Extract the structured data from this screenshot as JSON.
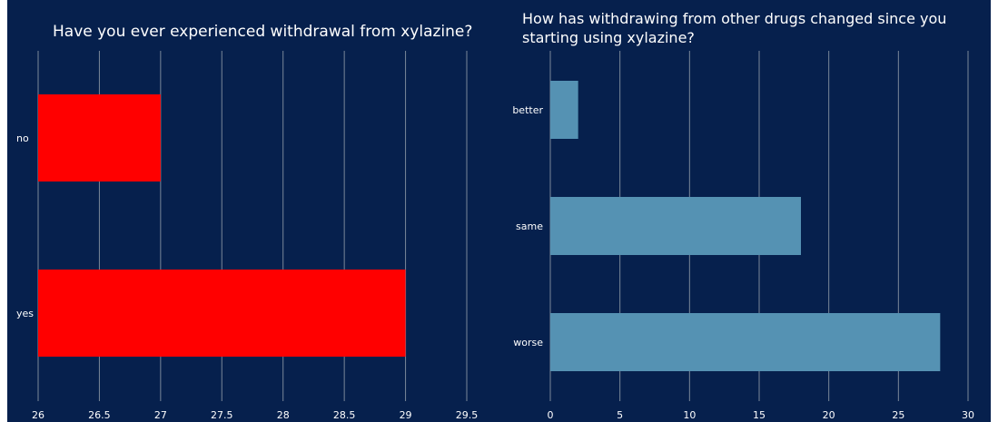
{
  "chart_data": [
    {
      "type": "bar",
      "orientation": "horizontal",
      "title": "Have you ever experienced withdrawal from xylazine?",
      "categories": [
        "no",
        "yes"
      ],
      "values": [
        27,
        29
      ],
      "xlim": [
        26,
        29.5
      ],
      "xticks": [
        "26",
        "26.5",
        "27",
        "27.5",
        "28",
        "28.5",
        "29",
        "29.5"
      ],
      "grid": true,
      "color": "#ff0000"
    },
    {
      "type": "bar",
      "orientation": "horizontal",
      "title_lines": [
        "How has withdrawing from other drugs changed since you",
        "starting using xylazine?"
      ],
      "categories": [
        "better",
        "same",
        "worse"
      ],
      "values": [
        2,
        18,
        28
      ],
      "xlim": [
        0,
        30
      ],
      "xticks": [
        "0",
        "5",
        "10",
        "15",
        "20",
        "25",
        "30"
      ],
      "grid": true,
      "color": "#5592b3"
    }
  ]
}
